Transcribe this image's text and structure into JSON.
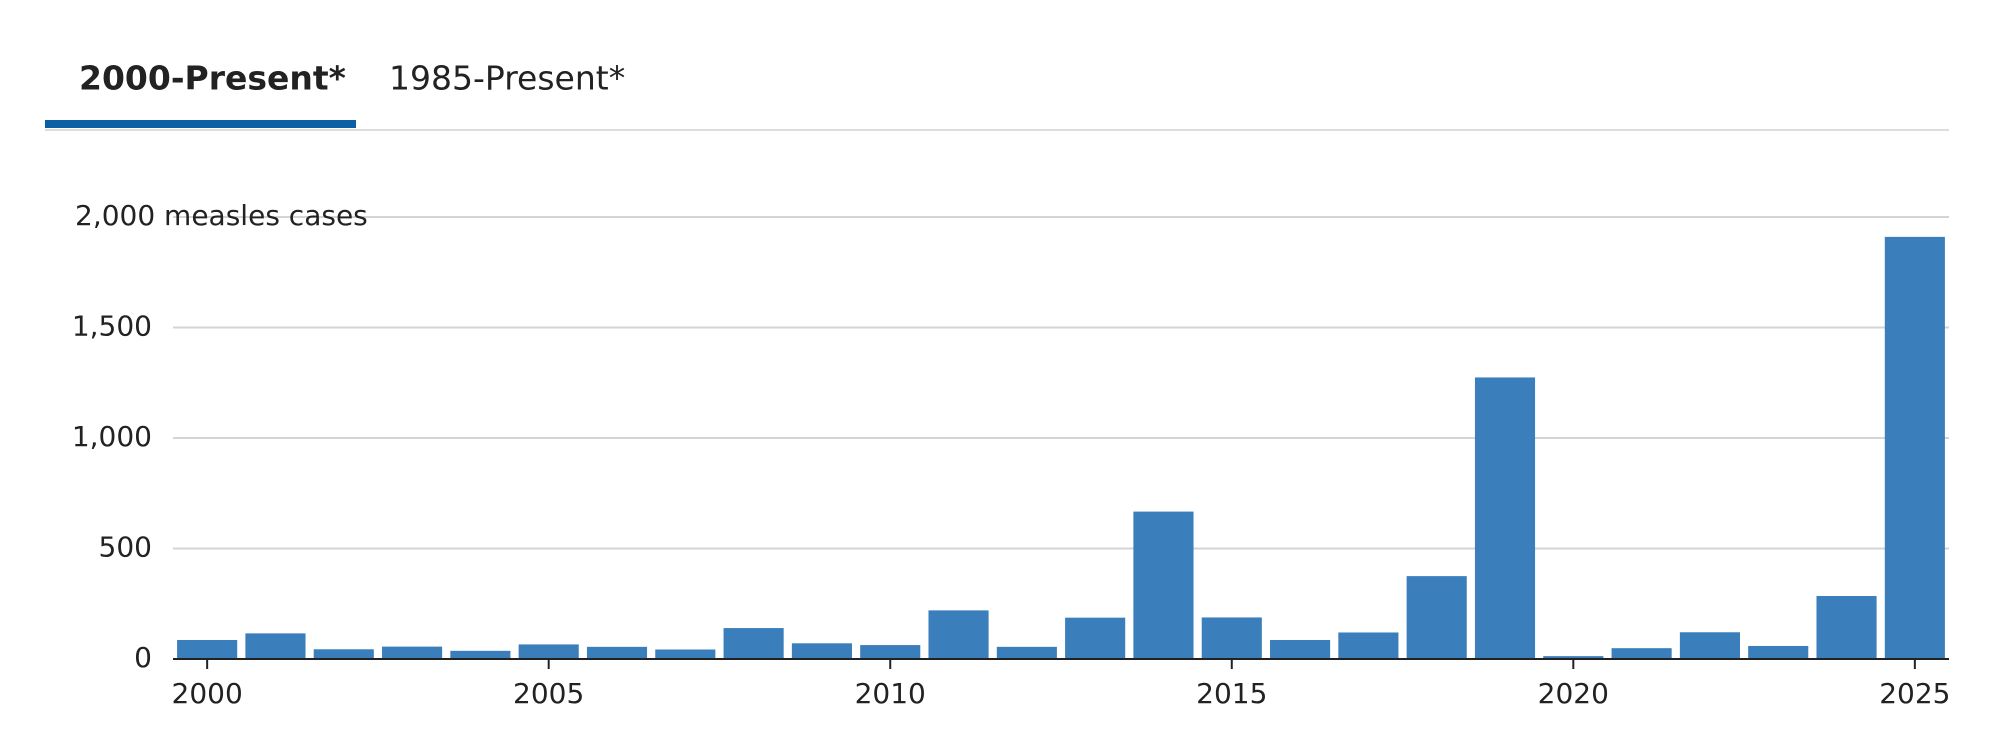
{
  "tabs": [
    "2000-Present*",
    "1985-Present*"
  ],
  "chart_data": {
    "type": "bar",
    "x": [
      2000,
      2001,
      2002,
      2003,
      2004,
      2005,
      2006,
      2007,
      2008,
      2009,
      2010,
      2011,
      2012,
      2013,
      2014,
      2015,
      2016,
      2017,
      2018,
      2019,
      2020,
      2021,
      2022,
      2023,
      2024,
      2025
    ],
    "values": [
      86,
      116,
      44,
      56,
      37,
      66,
      55,
      43,
      140,
      71,
      63,
      220,
      55,
      187,
      667,
      188,
      86,
      120,
      375,
      1274,
      13,
      49,
      121,
      59,
      285,
      1910
    ],
    "color": "#3a7ebb",
    "xlim": [
      1999.5,
      2025.5
    ],
    "xticks": [
      2000,
      2005,
      2010,
      2015,
      2020,
      2025
    ],
    "ylim": [
      0,
      2000
    ],
    "yticks": [
      0,
      500,
      {
        "value": 1000,
        "label": "1,000"
      },
      {
        "value": 1500,
        "label": "1,500"
      },
      {
        "value": 2000,
        "label": "2,000 measles cases"
      }
    ],
    "grid": true
  }
}
